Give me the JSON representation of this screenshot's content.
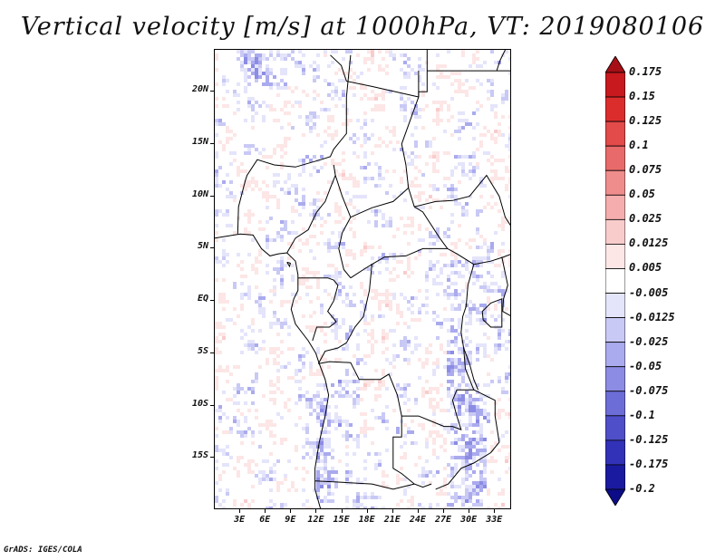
{
  "title": "Vertical velocity [m/s] at 1000hPa, VT: 2019080106",
  "credit": "GrADS: IGES/COLA",
  "map": {
    "lon_range": [
      0,
      35
    ],
    "lat_range": [
      -20,
      24
    ],
    "lat_labels": [
      {
        "lat": 20,
        "text": "20N"
      },
      {
        "lat": 15,
        "text": "15N"
      },
      {
        "lat": 10,
        "text": "10N"
      },
      {
        "lat": 5,
        "text": "5N"
      },
      {
        "lat": 0,
        "text": "EQ"
      },
      {
        "lat": -5,
        "text": "5S"
      },
      {
        "lat": -10,
        "text": "10S"
      },
      {
        "lat": -15,
        "text": "15S"
      }
    ],
    "lon_labels": [
      {
        "lon": 3,
        "text": "3E"
      },
      {
        "lon": 6,
        "text": "6E"
      },
      {
        "lon": 9,
        "text": "9E"
      },
      {
        "lon": 12,
        "text": "12E"
      },
      {
        "lon": 15,
        "text": "15E"
      },
      {
        "lon": 18,
        "text": "18E"
      },
      {
        "lon": 21,
        "text": "21E"
      },
      {
        "lon": 24,
        "text": "24E"
      },
      {
        "lon": 27,
        "text": "27E"
      },
      {
        "lon": 30,
        "text": "30E"
      },
      {
        "lon": 33,
        "text": "33E"
      }
    ],
    "boundary_color": "#000000"
  },
  "colorbar": {
    "levels": [
      "0.175",
      "0.15",
      "0.125",
      "0.1",
      "0.075",
      "0.05",
      "0.025",
      "0.0125",
      "0.005",
      "-0.005",
      "-0.0125",
      "-0.025",
      "-0.05",
      "-0.075",
      "-0.1",
      "-0.125",
      "-0.175",
      "-0.2"
    ],
    "colors": [
      "#a50f15",
      "#c8191e",
      "#dc2d2d",
      "#e34a4a",
      "#e86a6a",
      "#ef8c8c",
      "#f5adad",
      "#f9cccc",
      "#fde6e6",
      "#ffffff",
      "#e4e4fb",
      "#c9c9f5",
      "#aaaaee",
      "#8c8ce4",
      "#6d6dd8",
      "#4f4fca",
      "#3232b8",
      "#1a1aa0",
      "#0c0c88"
    ]
  }
}
